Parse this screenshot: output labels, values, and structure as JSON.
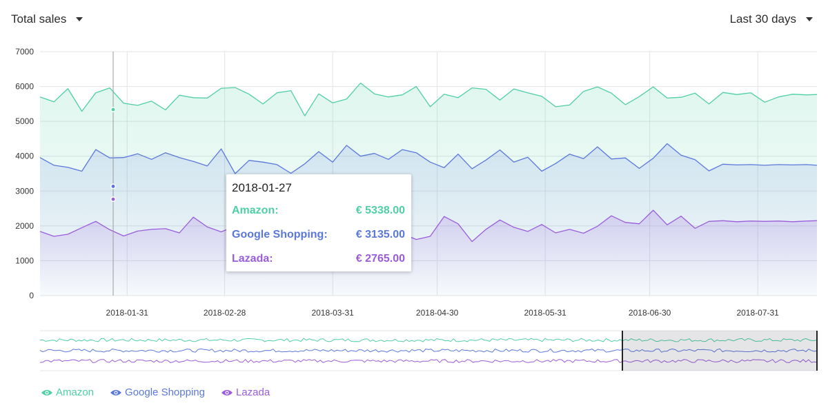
{
  "header": {
    "metric_label": "Total sales",
    "range_label": "Last 30 days"
  },
  "colors": {
    "amazon": "#4fcfa4",
    "google": "#5a78dc",
    "lazada": "#9b5cdc",
    "grid": "#e3e3e8",
    "axis_text": "#333333"
  },
  "tooltip": {
    "date": "2018-01-27",
    "rows": [
      {
        "name": "Amazon:",
        "value": "€ 5338.00",
        "color": "#4fcfa4"
      },
      {
        "name": "Google Shopping:",
        "value": "€ 3135.00",
        "color": "#5a78dc"
      },
      {
        "name": "Lazada:",
        "value": "€ 2765.00",
        "color": "#9b5cdc"
      }
    ]
  },
  "legend": [
    {
      "label": "Amazon",
      "icon": "eye-icon",
      "color": "#4fcfa4"
    },
    {
      "label": "Google Shopping",
      "icon": "eye-icon",
      "color": "#5a78dc"
    },
    {
      "label": "Lazada",
      "icon": "eye-icon",
      "color": "#9b5cdc"
    }
  ],
  "chart_data": {
    "type": "area",
    "stacked": false,
    "grid": true,
    "ylim": [
      0,
      7000
    ],
    "yticks": [
      0,
      1000,
      2000,
      3000,
      4000,
      5000,
      6000,
      7000
    ],
    "x_start": "2018-01-06",
    "x_end": "2018-08-17",
    "xticks": [
      "2018-01-31",
      "2018-02-28",
      "2018-03-31",
      "2018-04-30",
      "2018-05-31",
      "2018-06-30",
      "2018-07-31"
    ],
    "x": [
      "2018-01-06",
      "2018-01-10",
      "2018-01-14",
      "2018-01-18",
      "2018-01-22",
      "2018-01-26",
      "2018-01-30",
      "2018-02-03",
      "2018-02-07",
      "2018-02-11",
      "2018-02-15",
      "2018-02-19",
      "2018-02-23",
      "2018-02-27",
      "2018-03-03",
      "2018-03-07",
      "2018-03-11",
      "2018-03-15",
      "2018-03-19",
      "2018-03-23",
      "2018-03-27",
      "2018-03-31",
      "2018-04-04",
      "2018-04-08",
      "2018-04-12",
      "2018-04-16",
      "2018-04-20",
      "2018-04-24",
      "2018-04-28",
      "2018-05-02",
      "2018-05-06",
      "2018-05-10",
      "2018-05-14",
      "2018-05-18",
      "2018-05-22",
      "2018-05-26",
      "2018-05-30",
      "2018-06-03",
      "2018-06-07",
      "2018-06-11",
      "2018-06-15",
      "2018-06-19",
      "2018-06-23",
      "2018-06-27",
      "2018-07-01",
      "2018-07-05",
      "2018-07-09",
      "2018-07-13",
      "2018-07-17",
      "2018-07-21",
      "2018-07-25",
      "2018-07-29",
      "2018-08-02",
      "2018-08-06",
      "2018-08-10",
      "2018-08-14",
      "2018-08-17"
    ],
    "series": [
      {
        "name": "Amazon",
        "values": [
          5700,
          5560,
          5940,
          5290,
          5820,
          5960,
          5520,
          5460,
          5580,
          5330,
          5750,
          5680,
          5670,
          5950,
          5970,
          5780,
          5500,
          5820,
          5880,
          5160,
          5790,
          5530,
          5640,
          6100,
          5790,
          5700,
          5760,
          6000,
          5420,
          5780,
          5680,
          5960,
          5920,
          5610,
          5930,
          5820,
          5720,
          5420,
          5470,
          5860,
          5990,
          5810,
          5480,
          5710,
          5990,
          5670,
          5690,
          5810,
          5500,
          5830,
          5770,
          5820,
          5550,
          5700,
          5780,
          5760,
          5770
        ]
      },
      {
        "name": "Google Shopping",
        "values": [
          3960,
          3740,
          3680,
          3570,
          4190,
          3950,
          3960,
          4070,
          3910,
          4100,
          3960,
          3850,
          3720,
          4210,
          3500,
          3880,
          3830,
          3760,
          3510,
          3780,
          4130,
          3830,
          4310,
          4000,
          4080,
          3910,
          4190,
          4100,
          3830,
          3670,
          4060,
          3640,
          3890,
          4180,
          3830,
          3970,
          3570,
          3790,
          4060,
          3930,
          4270,
          3920,
          3950,
          3650,
          3940,
          4360,
          4030,
          3900,
          3580,
          3770,
          3750,
          3760,
          3740,
          3760,
          3750,
          3760,
          3740
        ]
      },
      {
        "name": "Lazada",
        "values": [
          1840,
          1700,
          1760,
          1950,
          2130,
          1890,
          1710,
          1850,
          1900,
          1920,
          1800,
          2250,
          1970,
          1830,
          1990,
          1960,
          2090,
          2150,
          1970,
          2130,
          2010,
          2060,
          2270,
          2230,
          1650,
          1830,
          1780,
          1610,
          1700,
          2270,
          2060,
          1550,
          1900,
          2170,
          1960,
          1840,
          2040,
          1800,
          1900,
          1790,
          1990,
          2290,
          2100,
          2060,
          2450,
          2030,
          2280,
          1930,
          2130,
          2150,
          2120,
          2140,
          2130,
          2140,
          2120,
          2140,
          2150
        ]
      }
    ],
    "highlight": {
      "date": "2018-01-27",
      "values": [
        5338,
        3135,
        2765
      ]
    }
  }
}
